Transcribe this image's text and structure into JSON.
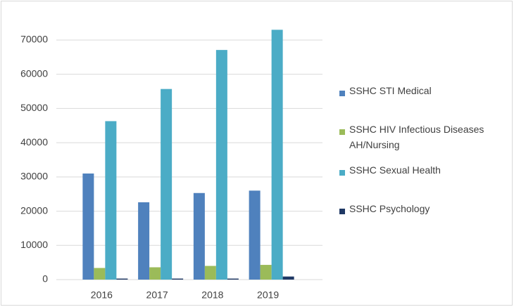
{
  "chart_data": {
    "type": "bar",
    "categories": [
      "2016",
      "2017",
      "2018",
      "2019"
    ],
    "series": [
      {
        "name": "SSHC STI Medical",
        "color": "#4f81bd",
        "values": [
          31000,
          22600,
          25300,
          26000
        ]
      },
      {
        "name": "SSHC HIV Infectious Diseases AH/Nursing",
        "color": "#9bbb59",
        "values": [
          3400,
          3600,
          4000,
          4300
        ]
      },
      {
        "name": "SSHC Sexual Health",
        "color": "#4bacc6",
        "values": [
          46300,
          55700,
          67100,
          73000
        ]
      },
      {
        "name": "SSHC Psychology",
        "color": "#1f3864",
        "values": [
          300,
          300,
          300,
          900
        ]
      }
    ],
    "ylim": [
      0,
      70000
    ],
    "yticks": [
      0,
      10000,
      20000,
      30000,
      40000,
      50000,
      60000,
      70000
    ],
    "grid": true,
    "legend": "right"
  }
}
